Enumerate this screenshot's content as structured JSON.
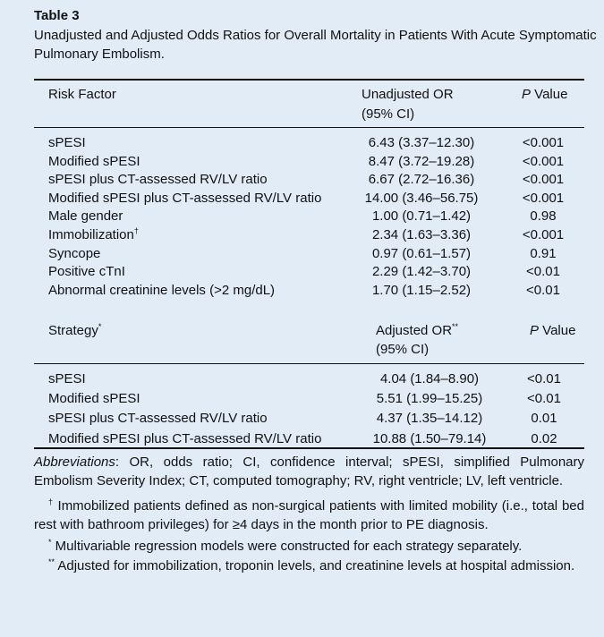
{
  "table_label": "Table 3",
  "caption": "Unadjusted and Adjusted Odds Ratios for Overall Mortality in Patients With Acute Symptomatic Pulmonary Embolism.",
  "table1": {
    "header": {
      "col1": "Risk Factor",
      "col2_line1": "Unadjusted OR",
      "col2_line2": "(95% CI)",
      "col3_p": "P",
      "col3_rest": " Value"
    },
    "rows": [
      {
        "factor": "sPESI",
        "marker": "",
        "or": "6.43 (3.37–12.30)",
        "p": "<0.001"
      },
      {
        "factor": "Modified sPESI",
        "marker": "",
        "or": "8.47 (3.72–19.28)",
        "p": "<0.001"
      },
      {
        "factor": "sPESI plus CT-assessed RV/LV ratio",
        "marker": "",
        "or": "6.67 (2.72–16.36)",
        "p": "<0.001"
      },
      {
        "factor": "Modified sPESI plus CT-assessed RV/LV ratio",
        "marker": "",
        "or": "14.00 (3.46–56.75)",
        "p": "<0.001"
      },
      {
        "factor": "Male gender",
        "marker": "",
        "or": "1.00 (0.71–1.42)",
        "p": "0.98"
      },
      {
        "factor": "Immobilization",
        "marker": "†",
        "or": "2.34 (1.63–3.36)",
        "p": "<0.001"
      },
      {
        "factor": "Syncope",
        "marker": "",
        "or": "0.97 (0.61–1.57)",
        "p": "0.91"
      },
      {
        "factor": "Positive cTnI",
        "marker": "",
        "or": "2.29 (1.42–3.70)",
        "p": "<0.01"
      },
      {
        "factor": "Abnormal creatinine levels (>2 mg/dL)",
        "marker": "",
        "or": "1.70 (1.15–2.52)",
        "p": "<0.01"
      }
    ]
  },
  "table2": {
    "header": {
      "col1": "Strategy",
      "col1_marker": "*",
      "col2_line1": "Adjusted OR",
      "col2_marker": "**",
      "col2_line2": "(95% CI)",
      "col3_p": "P",
      "col3_rest": " Value"
    },
    "rows": [
      {
        "strategy": "sPESI",
        "or": "4.04 (1.84–8.90)",
        "p": "<0.01"
      },
      {
        "strategy": "Modified sPESI",
        "or": "5.51 (1.99–15.25)",
        "p": "<0.01"
      },
      {
        "strategy": "sPESI plus CT-assessed RV/LV ratio",
        "or": "4.37 (1.35–14.12)",
        "p": "0.01"
      },
      {
        "strategy": "Modified sPESI plus CT-assessed RV/LV ratio",
        "or": "10.88 (1.50–79.14)",
        "p": "0.02"
      }
    ]
  },
  "footnotes": {
    "abbrev_label": "Abbreviations",
    "abbrev_text": ": OR, odds ratio; CI, confidence interval; sPESI, simplified Pulmonary Embolism Severity Index; CT, computed tomography; RV, right ventricle; LV, left ventricle.",
    "dagger_marker": "†",
    "dagger_text": " Immobilized patients defined as non-surgical patients with limited mobility (i.e., total bed rest with bathroom privileges) for ≥4 days in the month prior to PE diagnosis.",
    "star_marker": "*",
    "star_text": " Multivariable regression models were constructed for each strategy separately.",
    "dstar_marker": "**",
    "dstar_text": " Adjusted for immobilization, troponin levels, and creatinine levels at hospital admission."
  }
}
